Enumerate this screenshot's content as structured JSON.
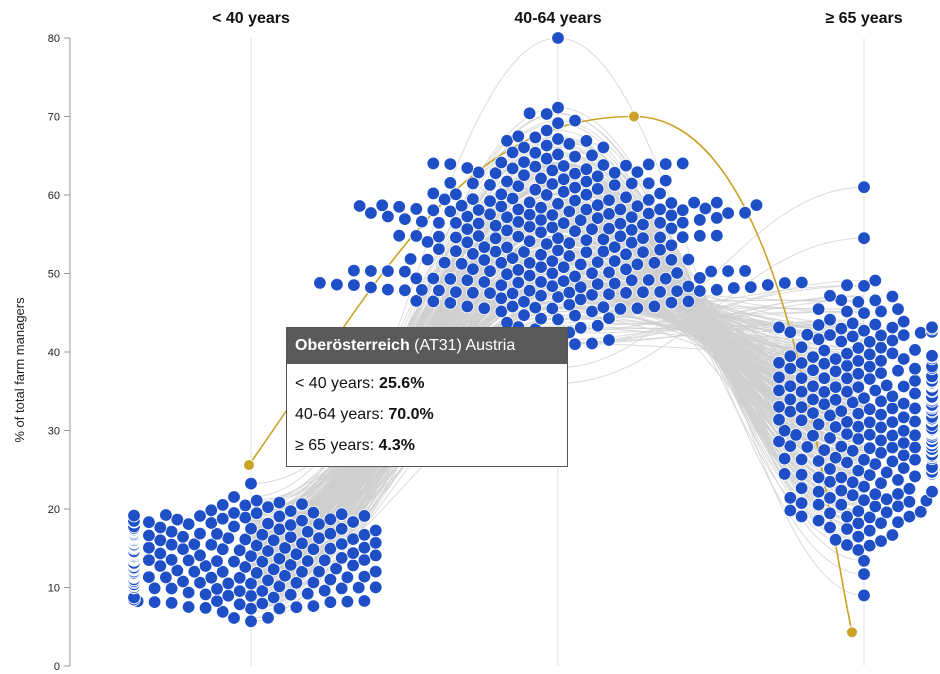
{
  "chart_data": {
    "type": "scatter",
    "subtype": "beeswarm-with-connecting-lines",
    "ylabel": "% of total farm managers",
    "ylim": [
      0,
      80
    ],
    "yticks": [
      "0",
      "10",
      "20",
      "30",
      "40",
      "50",
      "60",
      "70",
      "80"
    ],
    "grid": false,
    "categories": [
      "< 40 years",
      "40-64 years",
      "≥ 65 years"
    ],
    "colors": {
      "dot": "#1f4fc7",
      "dot_stroke": "#ffffff",
      "line": "#cfcfcf",
      "highlight": "#c9a227",
      "axis": "#999999"
    },
    "highlight": {
      "region_name": "Oberösterreich",
      "region_code": "(AT31) Austria",
      "values": [
        25.6,
        70.0,
        4.3
      ]
    }
  },
  "tooltip": {
    "title_bold": "Oberösterreich",
    "title_rest": " (AT31) Austria",
    "rows": [
      {
        "label": "< 40 years: ",
        "value": "25.6%"
      },
      {
        "label": "40-64 years: ",
        "value": "70.0%"
      },
      {
        "label": "≥ 65 years: ",
        "value": "4.3%"
      }
    ]
  }
}
